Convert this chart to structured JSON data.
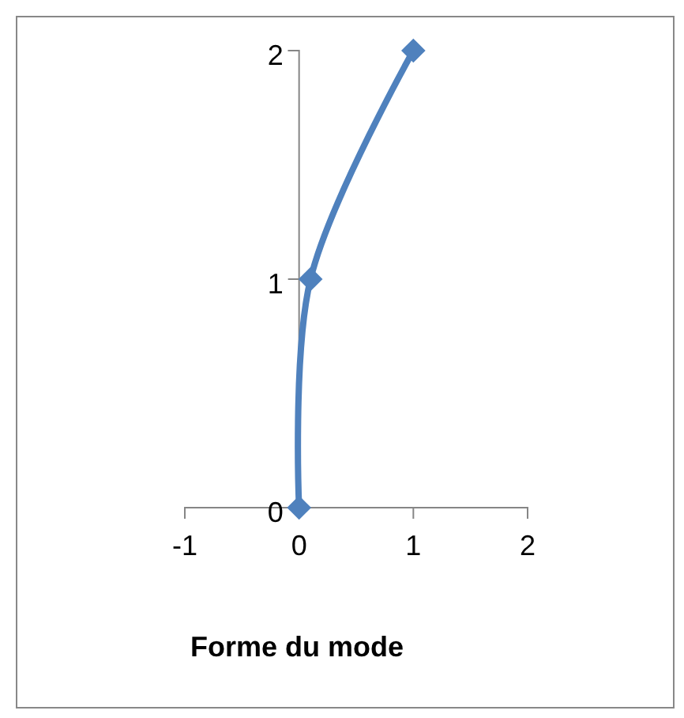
{
  "chart_data": {
    "type": "line",
    "xlabel": "Forme du mode",
    "x": [
      0,
      0.1,
      1
    ],
    "series": [
      {
        "color": "#4f81bd",
        "values": [
          0,
          1,
          2
        ]
      }
    ],
    "xlim": [
      -1,
      2
    ],
    "xticks": [
      -1,
      0,
      1,
      2
    ],
    "ylim": [
      0,
      2
    ],
    "yticks": [
      0,
      1,
      2
    ],
    "marker": "diamond",
    "line_style": "solid",
    "grid": false
  }
}
